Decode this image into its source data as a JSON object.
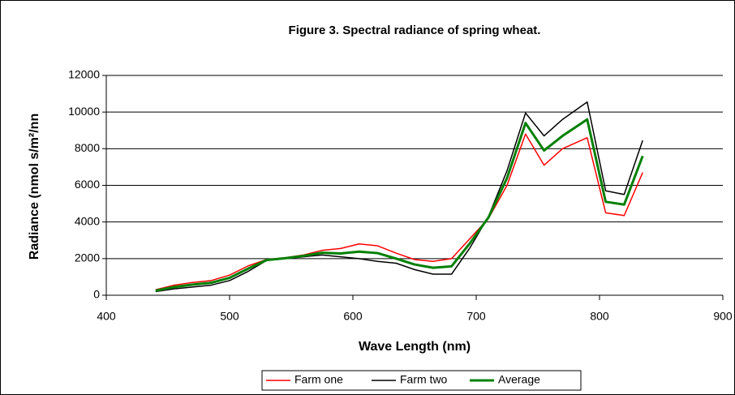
{
  "chart_data": {
    "type": "line",
    "title": "Figure 3. Spectral radiance of spring wheat.",
    "x_label": "Wave Length (nm)",
    "y_label": "Radiance (nmol s/m²/nn",
    "x": [
      440,
      455,
      470,
      485,
      500,
      515,
      530,
      545,
      560,
      575,
      590,
      605,
      620,
      635,
      650,
      665,
      680,
      695,
      710,
      725,
      740,
      755,
      770,
      790,
      805,
      820,
      835
    ],
    "series": [
      {
        "name": "Farm one",
        "color": "#ff0000",
        "values": [
          300,
          550,
          700,
          800,
          1100,
          1600,
          1950,
          2050,
          2200,
          2450,
          2550,
          2800,
          2700,
          2300,
          1950,
          1850,
          2000,
          3100,
          4200,
          6000,
          8800,
          7100,
          8000,
          8600,
          4500,
          4350,
          6700
        ]
      },
      {
        "name": "Farm two",
        "color": "#000000",
        "values": [
          200,
          350,
          450,
          550,
          800,
          1300,
          1900,
          2000,
          2100,
          2200,
          2100,
          2000,
          1850,
          1750,
          1400,
          1150,
          1150,
          2600,
          4300,
          6800,
          9950,
          8700,
          9600,
          10550,
          5700,
          5500,
          8450
        ]
      },
      {
        "name": "Average",
        "color": "#008000",
        "values": [
          250,
          450,
          580,
          680,
          950,
          1450,
          1920,
          2020,
          2150,
          2320,
          2280,
          2380,
          2300,
          2000,
          1680,
          1500,
          1580,
          2850,
          4250,
          6400,
          9400,
          7900,
          8700,
          9600,
          5100,
          4950,
          7600
        ]
      }
    ],
    "xlim": [
      400,
      900
    ],
    "xticks": [
      400,
      500,
      600,
      700,
      800,
      900
    ],
    "ylim": [
      0,
      12000
    ],
    "yticks": [
      0,
      2000,
      4000,
      6000,
      8000,
      10000,
      12000
    ],
    "grid": true,
    "legend": "bottom"
  }
}
